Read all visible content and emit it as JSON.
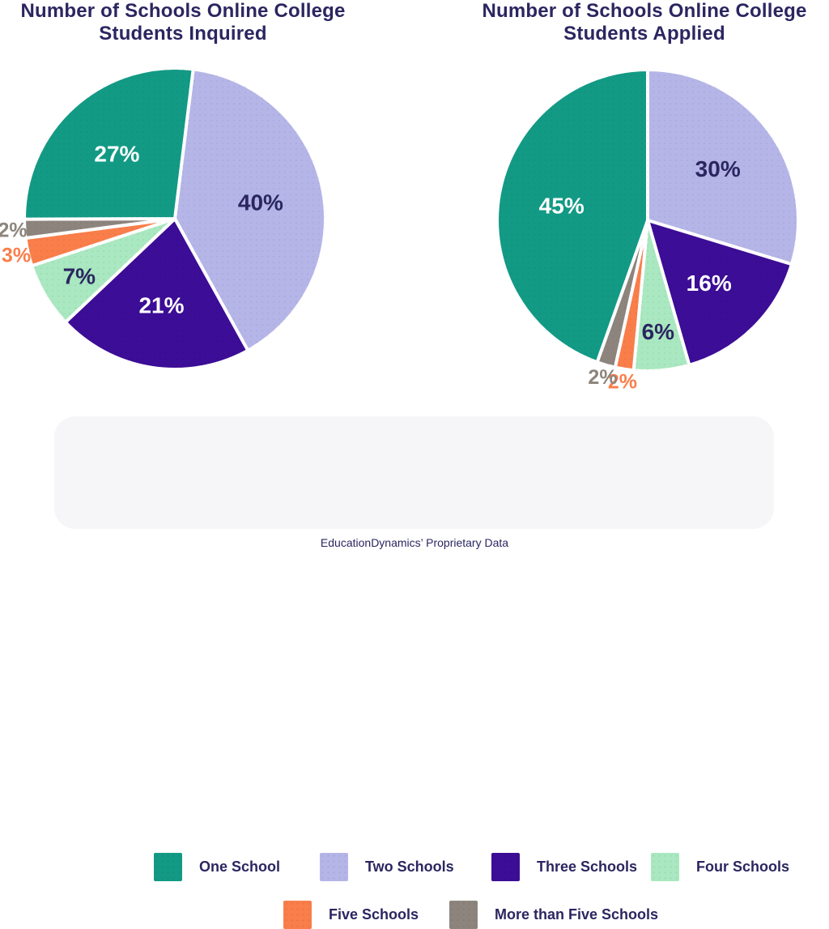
{
  "page": {
    "background_color": "#ffffff",
    "text_color": "#2b2660",
    "footer_text": "EducationDynamics’ Proprietary Data"
  },
  "chart_data": [
    {
      "type": "pie",
      "title": "Number of Schools Online College Students Inquired",
      "title_lines": [
        "Number of Schools Online College",
        "Students Inquired"
      ],
      "direction": "clockwise",
      "start_angle_deg": 7,
      "slices": [
        {
          "label": "Two Schools",
          "value": 40,
          "value_label": "40%",
          "color": "#b5b5e8",
          "label_color": "#2b2660",
          "label_position": "inside"
        },
        {
          "label": "Three Schools",
          "value": 21,
          "value_label": "21%",
          "color": "#3c0d96",
          "label_color": "#ffffff",
          "label_position": "inside"
        },
        {
          "label": "Four Schools",
          "value": 7,
          "value_label": "7%",
          "color": "#a9e8c0",
          "label_color": "#2b2660",
          "label_position": "inside"
        },
        {
          "label": "Five Schools",
          "value": 3,
          "value_label": "3%",
          "color": "#f97e4a",
          "label_color": "#f97e4a",
          "label_position": "outside"
        },
        {
          "label": "More than Five Schools",
          "value": 2,
          "value_label": "2%",
          "color": "#8d857d",
          "label_color": "#8d857d",
          "label_position": "outside"
        },
        {
          "label": "One School",
          "value": 27,
          "value_label": "27%",
          "color": "#129a85",
          "label_color": "#ffffff",
          "label_position": "inside"
        }
      ]
    },
    {
      "type": "pie",
      "title": "Number of Schools Online College Students Applied",
      "title_lines": [
        "Number of Schools Online College",
        "Students Applied"
      ],
      "direction": "clockwise",
      "start_angle_deg": 0,
      "slices": [
        {
          "label": "Two Schools",
          "value": 30,
          "value_label": "30%",
          "color": "#b5b5e8",
          "label_color": "#2b2660",
          "label_position": "inside"
        },
        {
          "label": "Three Schools",
          "value": 16,
          "value_label": "16%",
          "color": "#3c0d96",
          "label_color": "#ffffff",
          "label_position": "inside"
        },
        {
          "label": "Four Schools",
          "value": 6,
          "value_label": "6%",
          "color": "#a9e8c0",
          "label_color": "#2b2660",
          "label_position": "inside"
        },
        {
          "label": "Five Schools",
          "value": 2,
          "value_label": "2%",
          "color": "#f97e4a",
          "label_color": "#f97e4a",
          "label_position": "outside"
        },
        {
          "label": "More than Five Schools",
          "value": 2,
          "value_label": "2%",
          "color": "#8d857d",
          "label_color": "#8d857d",
          "label_position": "outside"
        },
        {
          "label": "One School",
          "value": 45,
          "value_label": "45%",
          "color": "#129a85",
          "label_color": "#ffffff",
          "label_position": "inside"
        }
      ]
    }
  ],
  "legend": {
    "background_color": "#f6f6f8",
    "items": [
      {
        "label": "One School",
        "color": "#129a85"
      },
      {
        "label": "Two Schools",
        "color": "#b5b5e8"
      },
      {
        "label": "Three Schools",
        "color": "#3c0d96"
      },
      {
        "label": "Four Schools",
        "color": "#a9e8c0"
      },
      {
        "label": "Five Schools",
        "color": "#f97e4a"
      },
      {
        "label": "More than Five Schools",
        "color": "#8d857d"
      }
    ]
  }
}
